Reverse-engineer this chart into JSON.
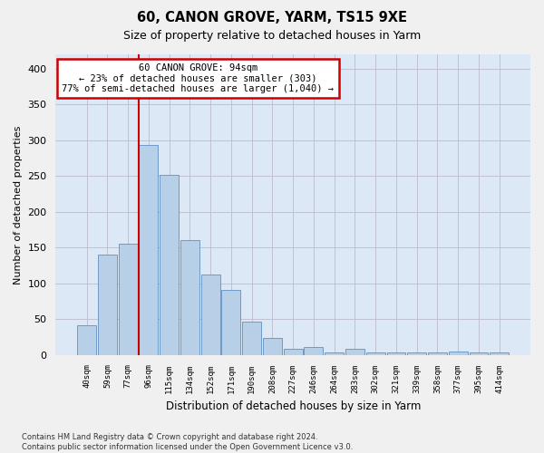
{
  "title1": "60, CANON GROVE, YARM, TS15 9XE",
  "title2": "Size of property relative to detached houses in Yarm",
  "xlabel": "Distribution of detached houses by size in Yarm",
  "ylabel": "Number of detached properties",
  "bar_labels": [
    "40sqm",
    "59sqm",
    "77sqm",
    "96sqm",
    "115sqm",
    "134sqm",
    "152sqm",
    "171sqm",
    "190sqm",
    "208sqm",
    "227sqm",
    "246sqm",
    "264sqm",
    "283sqm",
    "302sqm",
    "321sqm",
    "339sqm",
    "358sqm",
    "377sqm",
    "395sqm",
    "414sqm"
  ],
  "bar_values": [
    42,
    140,
    155,
    293,
    252,
    161,
    112,
    91,
    46,
    24,
    9,
    11,
    4,
    9,
    4,
    3,
    4,
    3,
    5,
    3,
    3
  ],
  "bar_color": "#b8cfe8",
  "bar_edge_color": "#6090c0",
  "grid_color": "#bbbbcc",
  "vline_x": 2.54,
  "vline_color": "#cc0000",
  "annotation_line1": "60 CANON GROVE: 94sqm",
  "annotation_line2": "← 23% of detached houses are smaller (303)",
  "annotation_line3": "77% of semi-detached houses are larger (1,040) →",
  "annotation_box_color": "#ffffff",
  "annotation_box_edgecolor": "#cc0000",
  "ylim": [
    0,
    420
  ],
  "yticks": [
    0,
    50,
    100,
    150,
    200,
    250,
    300,
    350,
    400
  ],
  "footnote": "Contains HM Land Registry data © Crown copyright and database right 2024.\nContains public sector information licensed under the Open Government Licence v3.0.",
  "bg_color": "#dce8f5",
  "fig_bg_color": "#f0f0f0"
}
